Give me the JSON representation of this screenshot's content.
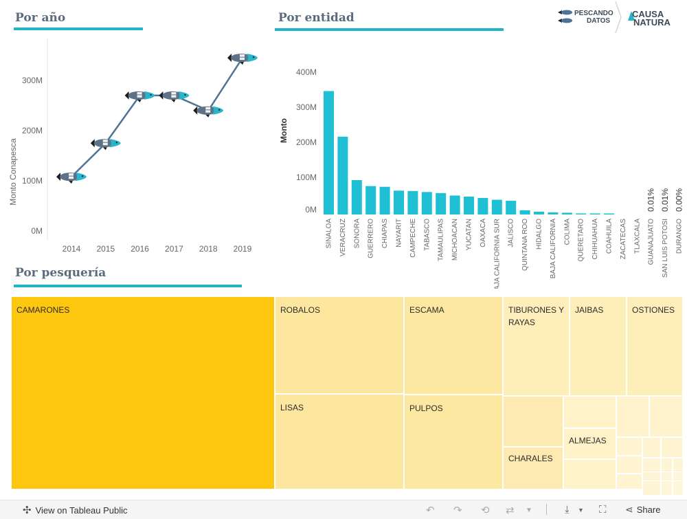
{
  "sections": {
    "by_year": "Por año",
    "by_entity": "Por entidad",
    "by_fishery": "Por pesquería"
  },
  "logos": {
    "pescando_line1": "PESCANDO",
    "pescando_line2": "DATOS",
    "causa_line1": "CAUSA",
    "causa_line2": "NATURA"
  },
  "colors": {
    "accent": "#24b4c9",
    "title": "#5b6b7d",
    "line": "#4f7396",
    "treemap_main": "#fdc60f",
    "treemap_light": "#fde9a2"
  },
  "chart_data": [
    {
      "type": "line",
      "title": "Por año",
      "ylabel": "Monto Conapesca",
      "x": [
        "2014",
        "2015",
        "2016",
        "2017",
        "2018",
        "2019"
      ],
      "values": [
        108,
        175,
        270,
        270,
        240,
        345
      ],
      "yticks": [
        "0M",
        "100M",
        "200M",
        "300M"
      ],
      "ylim": [
        0,
        380
      ],
      "marker": "fish-icon"
    },
    {
      "type": "bar",
      "title": "Por entidad",
      "ylabel": "Monto",
      "yticks": [
        "0M",
        "100M",
        "200M",
        "300M",
        "400M"
      ],
      "ylim": [
        0,
        420
      ],
      "categories": [
        "SINALOA",
        "VERACRUZ",
        "SONORA",
        "GUERRERO",
        "CHIAPAS",
        "NAYARIT",
        "CAMPECHE",
        "TABASCO",
        "TAMAULIPAS",
        "MICHOACAN",
        "YUCATAN",
        "OAXACA",
        "BAJA CALIFORNIA SUR",
        "JALISCO",
        "QUINTANA ROO",
        "HIDALGO",
        "BAJA CALIFORNIA",
        "COLIMA",
        "QUERETARO",
        "CHIHUAHUA",
        "COAHUILA",
        "ZACATECAS",
        "TLAXCALA",
        "GUANAJUATO",
        "SAN LUIS POTOSI",
        "DURANGO"
      ],
      "values": [
        352,
        222,
        98,
        81,
        79,
        68,
        67,
        64,
        61,
        54,
        51,
        47,
        42,
        39,
        12,
        8,
        6,
        5,
        3,
        2,
        1,
        0,
        0,
        0,
        0,
        0
      ],
      "value_labels": {
        "GUANAJUATO": "0.01%",
        "SAN LUIS POTOSI": "0.01%",
        "DURANGO": "0.00%"
      }
    }
  ],
  "treemap": {
    "labels": {
      "camarones": "CAMARONES",
      "robalos": "ROBALOS",
      "escama": "ESCAMA",
      "tiburones": "TIBURONES Y RAYAS",
      "jaibas": "JAIBAS",
      "ostiones": "OSTIONES",
      "lisas": "LISAS",
      "pulpos": "PULPOS",
      "almejas": "ALMEJAS",
      "charales": "CHARALES"
    }
  },
  "footer": {
    "view_label": "View on Tableau Public",
    "share_label": "Share"
  }
}
